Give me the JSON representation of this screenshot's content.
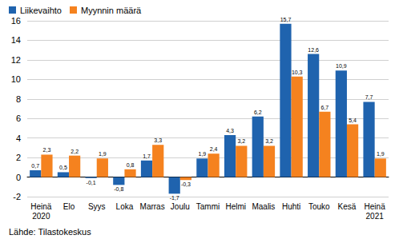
{
  "chart_data": {
    "type": "bar",
    "categories": [
      "Heinä\n2020",
      "Elo",
      "Syys",
      "Loka",
      "Marras",
      "Joulu",
      "Tammi",
      "Helmi",
      "Maalis",
      "Huhti",
      "Touko",
      "Kesä",
      "Heinä\n2021"
    ],
    "series": [
      {
        "name": "Liikevaihto",
        "color": "#1f63ae",
        "values": [
          0.7,
          0.5,
          -0.1,
          -0.8,
          1.7,
          -1.7,
          1.9,
          4.3,
          6.2,
          15.7,
          12.6,
          10.9,
          7.7
        ],
        "value_labels": [
          "0,7",
          "0,5",
          "-0,1",
          "-0,8",
          "1,7",
          "-1,7",
          "1,9",
          "4,3",
          "6,2",
          "15,7",
          "12,6",
          "10,9",
          "7,7"
        ]
      },
      {
        "name": "Myynnin määrä",
        "color": "#f5821f",
        "values": [
          2.3,
          2.2,
          1.9,
          0.8,
          3.3,
          -0.3,
          2.4,
          3.2,
          3.2,
          10.3,
          6.7,
          5.4,
          1.9
        ],
        "value_labels": [
          "2,3",
          "2,2",
          "1,9",
          "0,8",
          "3,3",
          "-0,3",
          "2,4",
          "3,2",
          "3,2",
          "10,3",
          "6,7",
          "5,4",
          "1,9"
        ]
      }
    ],
    "ylim": [
      -2,
      16
    ],
    "yticks": [
      -2,
      0,
      2,
      4,
      6,
      8,
      10,
      12,
      14,
      16
    ],
    "grid": true,
    "legend": "top-left",
    "data_labels": true,
    "source": "Lähde: Tilastokeskus"
  }
}
